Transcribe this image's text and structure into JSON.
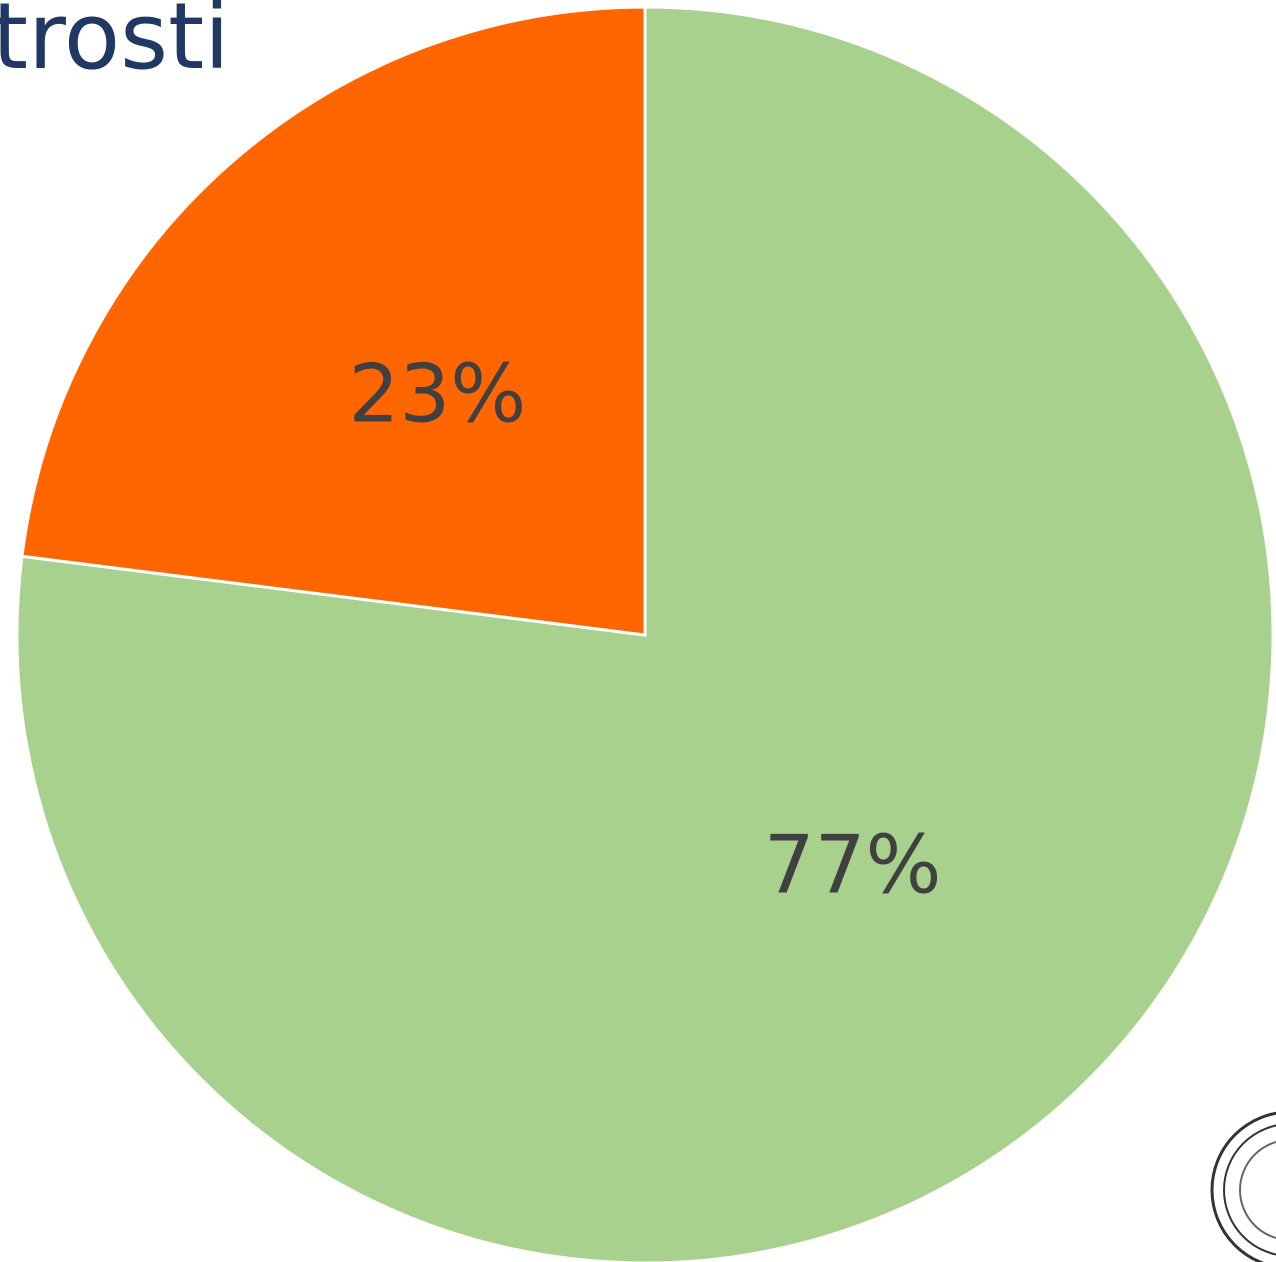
{
  "chart_data": {
    "type": "pie",
    "title": "trosti",
    "values": [
      77,
      23
    ],
    "value_labels": [
      "77%",
      "23%"
    ],
    "colors": [
      "#a9d18e",
      "#ff6600"
    ]
  }
}
